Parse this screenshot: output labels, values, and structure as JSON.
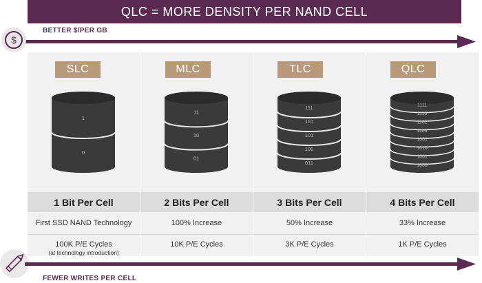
{
  "title": "QLC = MORE DENSITY PER NAND CELL",
  "top_arrow_label": "BETTER $/PER GB",
  "bottom_arrow_label": "FEWER WRITES PER CELL",
  "dollar_symbol": "$",
  "colors": {
    "brand_purple": "#5a2a52",
    "tag_tan": "#b89a7a",
    "cylinder": "#3a3a3a",
    "panel": "#f1f1f1"
  },
  "columns": [
    {
      "tag": "SLC",
      "layer_labels": [
        "1",
        "0"
      ],
      "bits": "1 Bit Per Cell",
      "tech": "First SSD NAND Technology",
      "cycles": "100K P/E Cycles",
      "note": "(at technology introduction)"
    },
    {
      "tag": "MLC",
      "layer_labels": [
        "11",
        "10",
        "01"
      ],
      "bits": "2 Bits Per Cell",
      "tech": "100% Increase",
      "cycles": "10K P/E Cycles",
      "note": ""
    },
    {
      "tag": "TLC",
      "layer_labels": [
        "111",
        "110",
        "101",
        "100",
        "011"
      ],
      "bits": "3 Bits Per Cell",
      "tech": "50% Increase",
      "cycles": "3K P/E Cycles",
      "note": ""
    },
    {
      "tag": "QLC",
      "layer_labels": [
        "1111",
        "1110",
        "1101",
        "1100",
        "1001",
        "1010",
        "1001",
        "1000"
      ],
      "bits": "4 Bits Per Cell",
      "tech": "33% Increase",
      "cycles": "1K P/E Cycles",
      "note": ""
    }
  ]
}
